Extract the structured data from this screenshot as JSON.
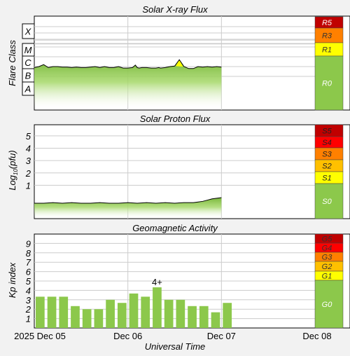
{
  "chart_data": [
    {
      "type": "area",
      "title": "Solar X-ray Flux",
      "ylabel": "Flare Class",
      "y_classes": [
        "X",
        "M",
        "C",
        "B",
        "A"
      ],
      "scale": [
        {
          "label": "R5",
          "color": "#c00000",
          "text_color": "#ffffff"
        },
        {
          "label": "R3",
          "color": "#ff8000",
          "text_color": "#333333"
        },
        {
          "label": "R1",
          "color": "#ffff00",
          "text_color": "#333333"
        },
        {
          "label": "R0",
          "color": "#8cc84b",
          "text_color": "#ffffff"
        }
      ],
      "x": [
        0,
        0.05,
        0.1,
        0.15,
        0.2,
        0.25,
        0.3,
        0.35,
        0.4,
        0.45,
        0.5,
        0.55,
        0.6,
        0.65,
        0.7,
        0.75,
        0.8,
        0.85,
        0.9,
        0.95,
        1.0,
        1.05,
        1.08,
        1.1,
        1.12,
        1.15,
        1.2,
        1.25,
        1.3,
        1.33,
        1.35,
        1.4,
        1.45,
        1.5,
        1.55,
        1.6,
        1.65,
        1.7,
        1.75,
        1.8,
        1.85,
        1.9,
        1.95,
        2.0
      ],
      "log_flux": [
        -6.1,
        -6.0,
        -5.8,
        -6.1,
        -6.0,
        -6.0,
        -6.05,
        -6.05,
        -6.1,
        -6.05,
        -6.1,
        -6.1,
        -6.05,
        -6.0,
        -6.1,
        -6.0,
        -6.1,
        -6.1,
        -6.0,
        -6.15,
        -6.15,
        -6.1,
        -5.85,
        -6.1,
        -6.15,
        -6.1,
        -6.1,
        -6.15,
        -6.15,
        -6.1,
        -6.15,
        -6.1,
        -6.0,
        -5.95,
        -5.3,
        -6.0,
        -6.2,
        -6.2,
        -6.0,
        -6.05,
        -6.0,
        -6.05,
        -6.0,
        -6.05
      ]
    },
    {
      "type": "area",
      "title": "Solar Proton Flux",
      "ylabel": "Log10(pfu)",
      "ylim": [
        -1.7,
        5.9
      ],
      "yticks": [
        "5",
        "4",
        "3",
        "2",
        "1"
      ],
      "scale": [
        {
          "label": "S5",
          "color": "#c00000",
          "text_color": "#222222"
        },
        {
          "label": "S4",
          "color": "#ff0000",
          "text_color": "#222222"
        },
        {
          "label": "S3",
          "color": "#ff8000",
          "text_color": "#222222"
        },
        {
          "label": "S2",
          "color": "#ffc000",
          "text_color": "#222222"
        },
        {
          "label": "S1",
          "color": "#ffff00",
          "text_color": "#222222"
        },
        {
          "label": "S0",
          "color": "#8cc84b",
          "text_color": "#ffffff"
        }
      ],
      "x": [
        0,
        0.1,
        0.2,
        0.3,
        0.4,
        0.5,
        0.6,
        0.7,
        0.8,
        0.9,
        1.0,
        1.1,
        1.2,
        1.3,
        1.4,
        1.5,
        1.6,
        1.7,
        1.75,
        1.8,
        1.85,
        1.9,
        1.95,
        2.0
      ],
      "log_pfu": [
        -0.45,
        -0.45,
        -0.4,
        -0.45,
        -0.4,
        -0.45,
        -0.45,
        -0.4,
        -0.45,
        -0.45,
        -0.4,
        -0.45,
        -0.4,
        -0.45,
        -0.4,
        -0.45,
        -0.4,
        -0.4,
        -0.35,
        -0.3,
        -0.2,
        -0.1,
        -0.05,
        0.0
      ]
    },
    {
      "type": "bar",
      "title": "Geomagnetic Activity",
      "ylabel": "Kp index",
      "xlabel": "Universal Time",
      "ylim": [
        0,
        10
      ],
      "yticks": [
        "9",
        "8",
        "7",
        "6",
        "5",
        "4",
        "3",
        "2",
        "1"
      ],
      "x_tick_labels": [
        "2025 Dec 05",
        "Dec 06",
        "Dec 07",
        "Dec 08"
      ],
      "values": [
        3.33,
        3.33,
        3.33,
        2.33,
        2.0,
        2.0,
        3.0,
        2.67,
        3.67,
        3.33,
        4.33,
        3.0,
        3.0,
        2.33,
        2.33,
        1.67,
        2.67
      ],
      "annotation": "4+",
      "scale": [
        {
          "label": "G5",
          "color": "#c00000",
          "text_color": "#333333"
        },
        {
          "label": "G4",
          "color": "#ff0000",
          "text_color": "#333333"
        },
        {
          "label": "G3",
          "color": "#ff8000",
          "text_color": "#333333"
        },
        {
          "label": "G2",
          "color": "#ffc000",
          "text_color": "#333333"
        },
        {
          "label": "G1",
          "color": "#ffff00",
          "text_color": "#333333"
        },
        {
          "label": "G0",
          "color": "#8cc84b",
          "text_color": "#ffffff"
        }
      ]
    }
  ],
  "colors": {
    "bar": "#8cc84b",
    "line": "#000000",
    "flare_peak": "#ffff00",
    "grid": "#cccccc"
  }
}
